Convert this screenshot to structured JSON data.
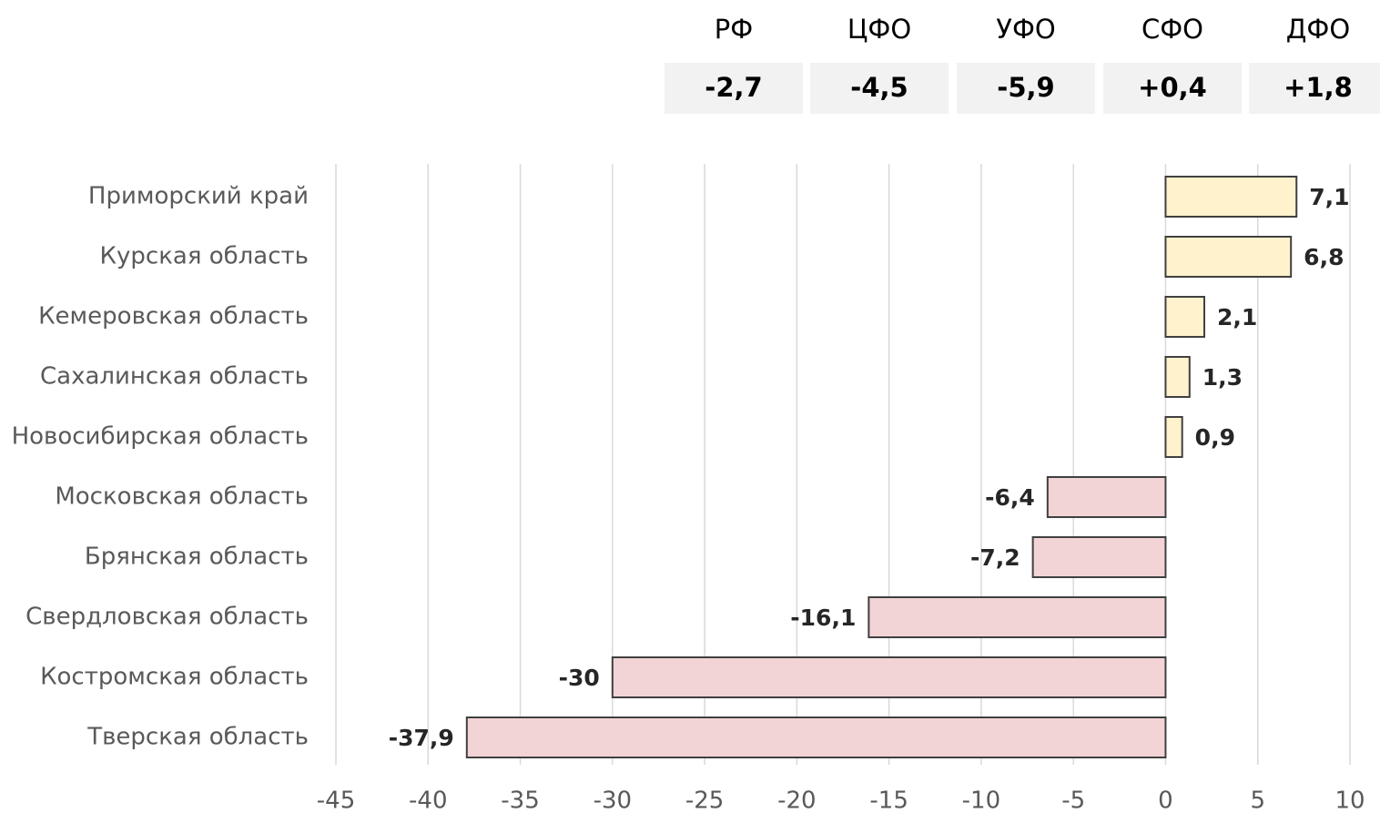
{
  "summary": {
    "columns": [
      "РФ",
      "ЦФО",
      "УФО",
      "СФО",
      "ДФО"
    ],
    "cells": [
      "-2,7",
      "-4,5",
      "-5,9",
      "+0,4",
      "+1,8"
    ]
  },
  "chart_data": {
    "type": "hbar",
    "categories": [
      "Приморский край",
      "Курская область",
      "Кемеровская область",
      "Сахалинская область",
      "Новосибирская область",
      "Московская область",
      "Брянская область",
      "Свердловская область",
      "Костромская область",
      "Тверская область"
    ],
    "values": [
      7.1,
      6.8,
      2.1,
      1.3,
      0.9,
      -6.4,
      -7.2,
      -16.1,
      -30,
      -37.9
    ],
    "value_labels": [
      "7,1",
      "6,8",
      "2,1",
      "1,3",
      "0,9",
      "-6,4",
      "-7,2",
      "-16,1",
      "-30",
      "-37,9"
    ],
    "positive_color": "#fff2cc",
    "negative_color": "#f2d3d6",
    "xlim": [
      -45,
      10
    ],
    "xticks": [
      -45,
      -40,
      -35,
      -30,
      -25,
      -20,
      -15,
      -10,
      -5,
      0,
      5,
      10
    ],
    "grid": true
  }
}
